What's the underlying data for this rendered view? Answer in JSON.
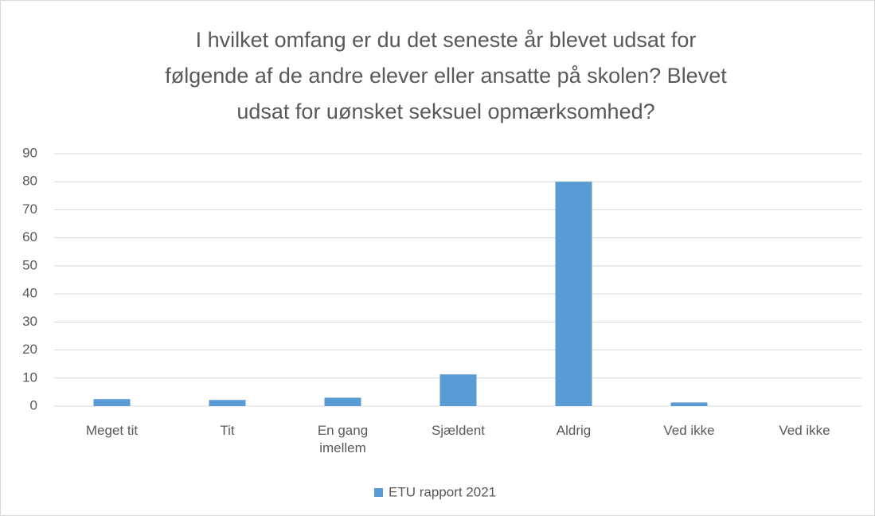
{
  "chart_data": {
    "type": "bar",
    "title": [
      "I hvilket omfang er du det seneste år blevet udsat for",
      "følgende af de andre elever eller ansatte på skolen? Blevet",
      "udsat for uønsket seksuel opmærksomhed?"
    ],
    "categories": [
      "Meget tit",
      "Tit",
      "En gang imellem",
      "Sjældent",
      "Aldrig",
      "Ved ikke",
      "Ved ikke"
    ],
    "series": [
      {
        "name": "ETU rapport 2021",
        "color": "#5b9bd5",
        "values": [
          2.5,
          2.2,
          3,
          11.3,
          80,
          1.3,
          0
        ]
      }
    ],
    "ylim": [
      0,
      90
    ],
    "yticks": [
      0,
      10,
      20,
      30,
      40,
      50,
      60,
      70,
      80,
      90
    ],
    "grid": true,
    "legend": "bottom"
  }
}
